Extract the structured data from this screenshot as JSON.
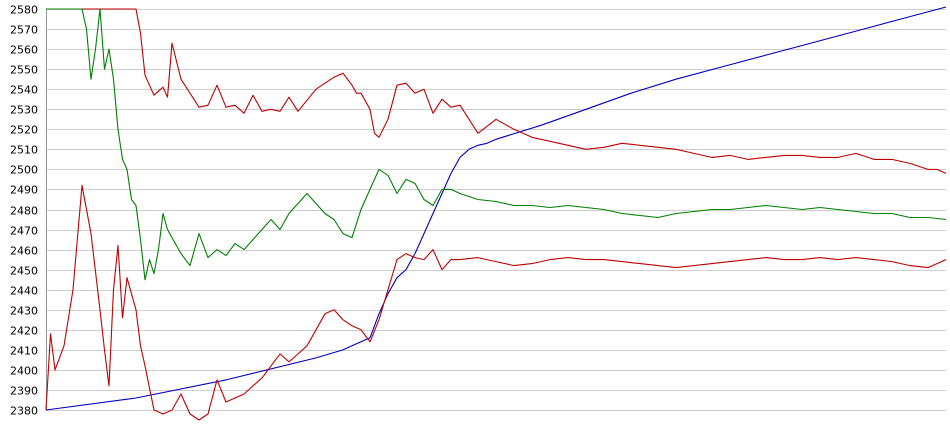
{
  "chart_data": {
    "type": "line",
    "title": "",
    "xlabel": "",
    "ylabel": "",
    "ylim": [
      2380,
      2580
    ],
    "y_ticks": [
      2380,
      2390,
      2400,
      2410,
      2420,
      2430,
      2440,
      2450,
      2460,
      2470,
      2480,
      2490,
      2500,
      2510,
      2520,
      2530,
      2540,
      2550,
      2560,
      2570,
      2580
    ],
    "y_tick_labels": [
      "2380",
      "2390",
      "2400",
      "2410",
      "2420",
      "2430",
      "2440",
      "2450",
      "2460",
      "2470",
      "2480",
      "2490",
      "2500",
      "2510",
      "2520",
      "2530",
      "2540",
      "2550",
      "2560",
      "2570",
      "2580"
    ],
    "grid": "horizontal",
    "legend": "none",
    "xlim": [
      0,
      100
    ],
    "series": [
      {
        "color": "#0000c0",
        "x": [
          0,
          10,
          20,
          30,
          33,
          34,
          35,
          36,
          37,
          38,
          39,
          40,
          41,
          42,
          43,
          44,
          45,
          46,
          47,
          48,
          49,
          50,
          55,
          60,
          65,
          70,
          75,
          80,
          85,
          90,
          95,
          100
        ],
        "values": [
          2380,
          2386,
          2395,
          2406,
          2410,
          2412,
          2414,
          2416,
          2428,
          2438,
          2446,
          2450,
          2458,
          2468,
          2478,
          2488,
          2498,
          2506,
          2510,
          2512,
          2513,
          2515,
          2522,
          2530,
          2538,
          2545,
          2551,
          2557,
          2563,
          2569,
          2575,
          2581
        ]
      },
      {
        "color": "#c00000",
        "x": [
          0,
          5,
          10,
          10.5,
          11,
          12,
          13,
          13.5,
          14,
          15,
          16,
          17,
          18,
          19,
          20,
          21,
          22,
          23,
          24,
          25,
          26,
          27,
          28,
          30,
          32,
          33,
          34,
          34.5,
          35,
          36,
          36.5,
          37,
          38,
          39,
          40,
          41,
          42,
          43,
          44,
          45,
          46,
          48,
          50,
          52,
          54,
          56,
          58,
          60,
          62,
          64,
          66,
          68,
          70,
          72,
          74,
          76,
          78,
          80,
          82,
          84,
          86,
          88,
          90,
          92,
          94,
          96,
          98,
          99,
          100
        ],
        "values": [
          2580,
          2580,
          2580,
          2568,
          2547,
          2537,
          2541,
          2536,
          2563,
          2545,
          2538,
          2531,
          2532,
          2542,
          2531,
          2532,
          2528,
          2537,
          2529,
          2530,
          2529,
          2536,
          2529,
          2540,
          2546,
          2548,
          2542,
          2538,
          2538,
          2530,
          2518,
          2516,
          2525,
          2542,
          2543,
          2538,
          2540,
          2528,
          2535,
          2531,
          2532,
          2518,
          2525,
          2520,
          2516,
          2514,
          2512,
          2510,
          2511,
          2513,
          2512,
          2511,
          2510,
          2508,
          2506,
          2507,
          2505,
          2506,
          2507,
          2507,
          2506,
          2506,
          2508,
          2505,
          2505,
          2503,
          2500,
          2500,
          2498
        ]
      },
      {
        "color": "#008000",
        "x": [
          0,
          4,
          4.5,
          5,
          5.5,
          6,
          6.5,
          7,
          7.5,
          8,
          8.5,
          9,
          9.5,
          10,
          10.5,
          11,
          11.5,
          12,
          12.5,
          13,
          13.5,
          14,
          15,
          16,
          17,
          18,
          19,
          20,
          21,
          22,
          23,
          24,
          25,
          26,
          27,
          28,
          29,
          30,
          31,
          32,
          33,
          34,
          35,
          36,
          37,
          38,
          39,
          40,
          41,
          42,
          43,
          44,
          45,
          46,
          48,
          50,
          52,
          54,
          56,
          58,
          60,
          62,
          64,
          66,
          68,
          70,
          72,
          74,
          76,
          78,
          80,
          82,
          84,
          86,
          88,
          90,
          92,
          94,
          96,
          98,
          100
        ],
        "values": [
          2580,
          2580,
          2570,
          2545,
          2560,
          2580,
          2550,
          2560,
          2545,
          2520,
          2505,
          2500,
          2485,
          2482,
          2465,
          2445,
          2455,
          2448,
          2460,
          2478,
          2470,
          2466,
          2458,
          2452,
          2468,
          2456,
          2460,
          2457,
          2463,
          2460,
          2465,
          2470,
          2475,
          2470,
          2478,
          2483,
          2488,
          2483,
          2478,
          2475,
          2468,
          2466,
          2480,
          2490,
          2500,
          2497,
          2488,
          2495,
          2493,
          2485,
          2482,
          2490,
          2490,
          2488,
          2485,
          2484,
          2482,
          2482,
          2481,
          2482,
          2481,
          2480,
          2478,
          2477,
          2476,
          2478,
          2479,
          2480,
          2480,
          2481,
          2482,
          2481,
          2480,
          2481,
          2480,
          2479,
          2478,
          2478,
          2476,
          2476,
          2475
        ]
      },
      {
        "color": "#c00000",
        "x": [
          0,
          0.5,
          1,
          2,
          3,
          4,
          5,
          6,
          6.5,
          7,
          7.5,
          8,
          8.5,
          9,
          10,
          10.5,
          11,
          12,
          13,
          14,
          15,
          16,
          17,
          18,
          19,
          20,
          21,
          22,
          23,
          24,
          25,
          26,
          27,
          28,
          29,
          30,
          31,
          32,
          33,
          34,
          35,
          36,
          37,
          38,
          39,
          40,
          41,
          42,
          43,
          44,
          45,
          46,
          48,
          50,
          52,
          54,
          56,
          58,
          60,
          62,
          64,
          66,
          68,
          70,
          72,
          74,
          76,
          78,
          80,
          82,
          84,
          86,
          88,
          90,
          92,
          94,
          96,
          98,
          100
        ],
        "values": [
          2380,
          2418,
          2400,
          2412,
          2440,
          2492,
          2468,
          2430,
          2410,
          2392,
          2440,
          2462,
          2426,
          2446,
          2430,
          2412,
          2402,
          2380,
          2378,
          2380,
          2388,
          2378,
          2375,
          2378,
          2395,
          2384,
          2386,
          2388,
          2392,
          2396,
          2402,
          2408,
          2404,
          2408,
          2412,
          2420,
          2428,
          2430,
          2425,
          2422,
          2420,
          2414,
          2425,
          2440,
          2455,
          2458,
          2456,
          2455,
          2460,
          2450,
          2455,
          2455,
          2456,
          2454,
          2452,
          2453,
          2455,
          2456,
          2455,
          2455,
          2454,
          2453,
          2452,
          2451,
          2452,
          2453,
          2454,
          2455,
          2456,
          2455,
          2455,
          2456,
          2455,
          2456,
          2455,
          2454,
          2452,
          2451,
          2455
        ]
      }
    ]
  }
}
